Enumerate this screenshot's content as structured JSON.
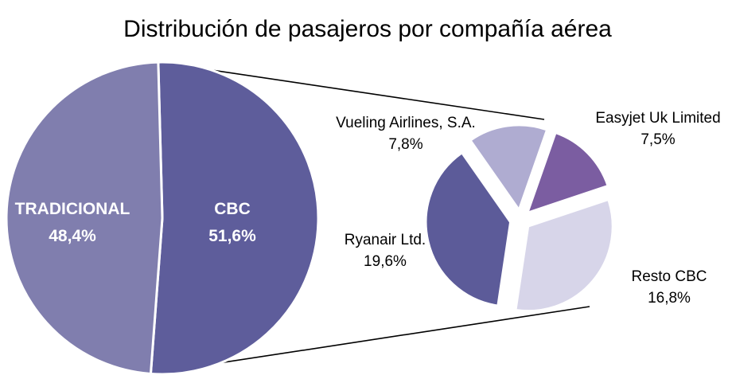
{
  "title": "Distribución de pasajeros por compañía aérea",
  "chart_data": {
    "type": "pie",
    "subtype": "pie-of-pie",
    "title": "Distribución de pasajeros por compañía aérea",
    "legend": "none",
    "background": "#FFFFFF",
    "connector_color": "#000000",
    "main_pie": {
      "start_angle_deg": -1.5,
      "exploded": false,
      "slices": [
        {
          "label": "CBC",
          "pct_label": "51,6%",
          "value": 51.6,
          "color": "#5E5D9B",
          "text_color": "#FFFFFF"
        },
        {
          "label": "TRADICIONAL",
          "pct_label": "48,4%",
          "value": 48.4,
          "color": "#807EAE",
          "text_color": "#FFFFFF"
        }
      ]
    },
    "secondary_pie": {
      "represents": "CBC",
      "start_angle_deg": -35,
      "exploded": true,
      "slices": [
        {
          "label": "Vueling Airlines, S.A.",
          "pct_label": "7,8%",
          "value": 7.8,
          "color": "#AFACD1"
        },
        {
          "label": "Easyjet Uk Limited",
          "pct_label": "7,5%",
          "value": 7.5,
          "color": "#7B5DA1"
        },
        {
          "label": "Resto CBC",
          "pct_label": "16,8%",
          "value": 16.8,
          "color": "#D7D5E9"
        },
        {
          "label": "Ryanair Ltd.",
          "pct_label": "19,6%",
          "value": 19.6,
          "color": "#5C5B99"
        }
      ]
    }
  }
}
